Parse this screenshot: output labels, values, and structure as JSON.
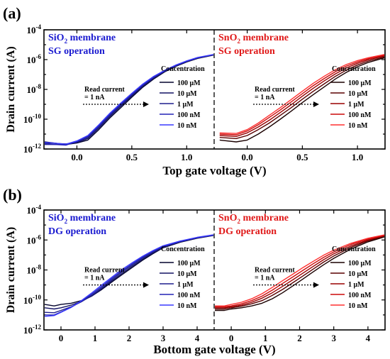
{
  "panels": [
    {
      "label": "(a)",
      "xlabel": "Top gate voltage (V)",
      "ylabel": "Drain current (A)",
      "yticks": [
        {
          "exp": -12,
          "label_base": "10",
          "label_exp": "-12"
        },
        {
          "exp": -10,
          "label_base": "10",
          "label_exp": "-10"
        },
        {
          "exp": -8,
          "label_base": "10",
          "label_exp": "-8"
        },
        {
          "exp": -6,
          "label_base": "10",
          "label_exp": "-6"
        },
        {
          "exp": -4,
          "label_base": "10",
          "label_exp": "-4"
        }
      ]
    },
    {
      "label": "(b)",
      "xlabel": "Bottom gate voltage (V)",
      "ylabel": "Drain current (A)",
      "yticks": [
        {
          "exp": -12,
          "label_base": "10",
          "label_exp": "-12"
        },
        {
          "exp": -10,
          "label_base": "10",
          "label_exp": "-10"
        },
        {
          "exp": -8,
          "label_base": "10",
          "label_exp": "-8"
        },
        {
          "exp": -6,
          "label_base": "10",
          "label_exp": "-6"
        },
        {
          "exp": -4,
          "label_base": "10",
          "label_exp": "-4"
        }
      ]
    }
  ],
  "chart_data": [
    {
      "type": "line",
      "panel": "(a) left",
      "title_main": "SiO",
      "title_sub": "2",
      "title_rest": " membrane",
      "subtitle": "SG operation",
      "title_color": "#1a1ad0",
      "xlabel": "Top gate voltage (V)",
      "ylabel": "Drain current (A)",
      "y_scale": "log",
      "ylim": [
        1e-12,
        0.0001
      ],
      "xlim": [
        -0.3,
        1.25
      ],
      "x_ticks": [
        0.0,
        0.5,
        1.0
      ],
      "x_tick_labels": [
        "0.0",
        "0.5",
        "1.0"
      ],
      "annotation": [
        "Read current",
        "= 1 nA"
      ],
      "annotation_value": 1e-09,
      "legend_title": "Concentration",
      "legend_loc": "center right",
      "series": [
        {
          "name": "100 μM",
          "color": "#05052e",
          "x": [
            -0.3,
            -0.1,
            0.0,
            0.1,
            0.2,
            0.3,
            0.4,
            0.5,
            0.6,
            0.7,
            0.8,
            0.9,
            1.0,
            1.1,
            1.25
          ],
          "y": [
            3e-12,
            2e-12,
            2.5e-12,
            4e-12,
            2e-11,
            1.2e-10,
            6e-10,
            3e-09,
            1.4e-08,
            5e-08,
            1.5e-07,
            3.5e-07,
            7e-07,
            1.2e-06,
            2e-06
          ]
        },
        {
          "name": "10 μM",
          "color": "#141465",
          "x": [
            -0.3,
            -0.1,
            0.0,
            0.1,
            0.2,
            0.3,
            0.4,
            0.5,
            0.6,
            0.7,
            0.8,
            0.9,
            1.0,
            1.1,
            1.25
          ],
          "y": [
            2.5e-12,
            2.2e-12,
            2.7e-12,
            5e-12,
            2.5e-11,
            1.5e-10,
            7.5e-10,
            3.6e-09,
            1.6e-08,
            5.6e-08,
            1.6e-07,
            3.7e-07,
            7.3e-07,
            1.25e-06,
            2.05e-06
          ]
        },
        {
          "name": "1 μM",
          "color": "#1e1e8e",
          "x": [
            -0.3,
            -0.1,
            0.0,
            0.1,
            0.2,
            0.3,
            0.4,
            0.5,
            0.6,
            0.7,
            0.8,
            0.9,
            1.0,
            1.1,
            1.25
          ],
          "y": [
            2e-12,
            2e-12,
            3e-12,
            6e-12,
            3e-11,
            1.8e-10,
            9e-10,
            4.2e-09,
            1.8e-08,
            6.2e-08,
            1.7e-07,
            3.9e-07,
            7.6e-07,
            1.3e-06,
            2.1e-06
          ]
        },
        {
          "name": "100 nM",
          "color": "#2323b5",
          "x": [
            -0.3,
            -0.1,
            0.0,
            0.1,
            0.2,
            0.3,
            0.4,
            0.5,
            0.6,
            0.7,
            0.8,
            0.9,
            1.0,
            1.1,
            1.25
          ],
          "y": [
            2.2e-12,
            1.8e-12,
            3.2e-12,
            7e-12,
            3.6e-11,
            2.1e-10,
            1.05e-09,
            4.8e-09,
            2e-08,
            6.8e-08,
            1.8e-07,
            4.1e-07,
            7.9e-07,
            1.35e-06,
            2.15e-06
          ]
        },
        {
          "name": "10 nM",
          "color": "#3a3aff",
          "x": [
            -0.3,
            -0.1,
            0.0,
            0.1,
            0.2,
            0.3,
            0.4,
            0.5,
            0.6,
            0.7,
            0.8,
            0.9,
            1.0,
            1.1,
            1.25
          ],
          "y": [
            2.8e-12,
            2.1e-12,
            3.5e-12,
            8e-12,
            4.2e-11,
            2.5e-10,
            1.2e-09,
            5.5e-09,
            2.3e-08,
            7.5e-08,
            1.9e-07,
            4.3e-07,
            8.2e-07,
            1.4e-06,
            2.2e-06
          ]
        }
      ]
    },
    {
      "type": "line",
      "panel": "(a) right",
      "title_main": "SnO",
      "title_sub": "2",
      "title_rest": " membrane",
      "subtitle": "SG operation",
      "title_color": "#e01818",
      "xlabel": "Top gate voltage (V)",
      "ylabel": "Drain current (A)",
      "y_scale": "log",
      "ylim": [
        1e-12,
        0.0001
      ],
      "xlim": [
        -0.3,
        1.25
      ],
      "x_ticks": [
        0.0,
        0.5,
        1.0
      ],
      "x_tick_labels": [
        "0.0",
        "0.5",
        "1.0"
      ],
      "annotation": [
        "Read current",
        "= 1 nA"
      ],
      "annotation_value": 1e-09,
      "legend_title": "Concentration",
      "legend_loc": "center right",
      "series": [
        {
          "name": "100 μM",
          "color": "#1a0000",
          "x": [
            -0.25,
            -0.1,
            0.0,
            0.1,
            0.2,
            0.3,
            0.4,
            0.5,
            0.6,
            0.7,
            0.8,
            0.9,
            1.0,
            1.1,
            1.25
          ],
          "y": [
            4e-12,
            3e-12,
            4e-12,
            1e-11,
            3e-11,
            1e-10,
            3.5e-10,
            1.3e-09,
            4.5e-09,
            1.5e-08,
            5e-08,
            1.4e-07,
            3.3e-07,
            6.5e-07,
            1.3e-06
          ]
        },
        {
          "name": "10 μM",
          "color": "#5a0000",
          "x": [
            -0.25,
            -0.1,
            0.0,
            0.1,
            0.2,
            0.3,
            0.4,
            0.5,
            0.6,
            0.7,
            0.8,
            0.9,
            1.0,
            1.1,
            1.25
          ],
          "y": [
            6e-12,
            5e-12,
            8e-12,
            2e-11,
            5.5e-11,
            1.8e-10,
            6e-10,
            2.2e-09,
            7.5e-09,
            2.4e-08,
            7.5e-08,
            2e-07,
            4.3e-07,
            8e-07,
            1.5e-06
          ]
        },
        {
          "name": "1 μM",
          "color": "#9a0000",
          "x": [
            -0.25,
            -0.1,
            0.0,
            0.1,
            0.2,
            0.3,
            0.4,
            0.5,
            0.6,
            0.7,
            0.8,
            0.9,
            1.0,
            1.1,
            1.25
          ],
          "y": [
            8e-12,
            7e-12,
            1.2e-11,
            3e-11,
            8.5e-11,
            2.8e-10,
            9.5e-10,
            3.5e-09,
            1.2e-08,
            3.8e-08,
            1.1e-07,
            2.8e-07,
            5.6e-07,
            9.8e-07,
            1.75e-06
          ]
        },
        {
          "name": "100 nM",
          "color": "#cc0a0a",
          "x": [
            -0.25,
            -0.1,
            0.0,
            0.1,
            0.2,
            0.3,
            0.4,
            0.5,
            0.6,
            0.7,
            0.8,
            0.9,
            1.0,
            1.1,
            1.25
          ],
          "y": [
            1e-11,
            9e-12,
            1.6e-11,
            4.2e-11,
            1.3e-10,
            4.2e-10,
            1.45e-09,
            5.2e-09,
            1.8e-08,
            5.5e-08,
            1.55e-07,
            3.7e-07,
            7e-07,
            1.15e-06,
            1.95e-06
          ]
        },
        {
          "name": "10 nM",
          "color": "#ff3030",
          "x": [
            -0.25,
            -0.1,
            0.0,
            0.1,
            0.2,
            0.3,
            0.4,
            0.5,
            0.6,
            0.7,
            0.8,
            0.9,
            1.0,
            1.1,
            1.25
          ],
          "y": [
            1.2e-11,
            1.1e-11,
            2e-11,
            5.5e-11,
            1.8e-10,
            6e-10,
            2.1e-09,
            7.5e-09,
            2.6e-08,
            7.8e-08,
            2.1e-07,
            4.7e-07,
            8.6e-07,
            1.35e-06,
            2.2e-06
          ]
        }
      ]
    },
    {
      "type": "line",
      "panel": "(b) left",
      "title_main": "SiO",
      "title_sub": "2",
      "title_rest": " membrane",
      "subtitle": "DG operation",
      "title_color": "#1a1ad0",
      "xlabel": "Bottom gate voltage (V)",
      "ylabel": "Drain current (A)",
      "y_scale": "log",
      "ylim": [
        1e-12,
        0.0001
      ],
      "xlim": [
        -0.5,
        4.5
      ],
      "x_ticks": [
        0,
        1,
        2,
        3,
        4
      ],
      "x_tick_labels": [
        "0",
        "1",
        "2",
        "3",
        "4"
      ],
      "annotation": [
        "Read current",
        "= 1 nA"
      ],
      "annotation_value": 1e-09,
      "legend_title": "Concentration",
      "legend_loc": "center right",
      "series": [
        {
          "name": "100 μM",
          "color": "#05052e",
          "x": [
            -0.5,
            -0.2,
            0.0,
            0.3,
            0.6,
            0.9,
            1.2,
            1.5,
            1.8,
            2.1,
            2.4,
            2.7,
            3.0,
            3.5,
            4.0,
            4.5
          ],
          "y": [
            5e-11,
            4e-11,
            5e-11,
            6e-11,
            9e-11,
            1.8e-10,
            5e-10,
            1.6e-09,
            5e-09,
            1.5e-08,
            4.5e-08,
            1.2e-07,
            3e-07,
            7e-07,
            1.3e-06,
            2e-06
          ]
        },
        {
          "name": "10 μM",
          "color": "#141465",
          "x": [
            -0.5,
            -0.2,
            0.0,
            0.3,
            0.6,
            0.9,
            1.2,
            1.5,
            1.8,
            2.1,
            2.4,
            2.7,
            3.0,
            3.5,
            4.0,
            4.5
          ],
          "y": [
            3e-11,
            2.5e-11,
            3e-11,
            4.5e-11,
            8e-11,
            1.8e-10,
            5.5e-10,
            1.9e-09,
            6e-09,
            1.8e-08,
            5.3e-08,
            1.35e-07,
            3.2e-07,
            7.3e-07,
            1.35e-06,
            2.05e-06
          ]
        },
        {
          "name": "1 μM",
          "color": "#1e1e8e",
          "x": [
            -0.5,
            -0.2,
            0.0,
            0.3,
            0.6,
            0.9,
            1.2,
            1.5,
            1.8,
            2.1,
            2.4,
            2.7,
            3.0,
            3.5,
            4.0,
            4.5
          ],
          "y": [
            1.5e-11,
            1.4e-11,
            2e-11,
            3.5e-11,
            7.5e-11,
            2e-10,
            6.5e-10,
            2.3e-09,
            7.5e-09,
            2.2e-08,
            6.3e-08,
            1.55e-07,
            3.5e-07,
            7.7e-07,
            1.4e-06,
            2.1e-06
          ]
        },
        {
          "name": "100 nM",
          "color": "#2323b5",
          "x": [
            -0.5,
            -0.2,
            0.0,
            0.3,
            0.6,
            0.9,
            1.2,
            1.5,
            1.8,
            2.1,
            2.4,
            2.7,
            3.0,
            3.5,
            4.0,
            4.5
          ],
          "y": [
            1e-11,
            1e-11,
            1.6e-11,
            3.2e-11,
            8e-11,
            2.4e-10,
            8e-10,
            2.8e-09,
            9e-09,
            2.6e-08,
            7.2e-08,
            1.75e-07,
            3.8e-07,
            8.1e-07,
            1.45e-06,
            2.15e-06
          ]
        },
        {
          "name": "10 nM",
          "color": "#3a3aff",
          "x": [
            -0.5,
            -0.2,
            0.0,
            0.3,
            0.6,
            0.9,
            1.2,
            1.5,
            1.8,
            2.1,
            2.4,
            2.7,
            3.0,
            3.5,
            4.0,
            4.5
          ],
          "y": [
            8e-12,
            9e-12,
            1.5e-11,
            3.2e-11,
            9e-11,
            2.9e-10,
            1e-09,
            3.4e-09,
            1.1e-08,
            3.1e-08,
            8.3e-08,
            1.95e-07,
            4.1e-07,
            8.5e-07,
            1.5e-06,
            2.2e-06
          ]
        }
      ]
    },
    {
      "type": "line",
      "panel": "(b) right",
      "title_main": "SnO",
      "title_sub": "2",
      "title_rest": " membrane",
      "subtitle": "DG operation",
      "title_color": "#e01818",
      "xlabel": "Bottom gate voltage (V)",
      "ylabel": "Drain current (A)",
      "y_scale": "log",
      "ylim": [
        1e-12,
        0.0001
      ],
      "xlim": [
        -0.5,
        4.5
      ],
      "x_ticks": [
        0,
        1,
        2,
        3,
        4
      ],
      "x_tick_labels": [
        "0",
        "1",
        "2",
        "3",
        "4"
      ],
      "annotation": [
        "Read current",
        "= 1 nA"
      ],
      "annotation_value": 1e-09,
      "legend_title": "Concentration",
      "legend_loc": "center right",
      "series": [
        {
          "name": "100 μM",
          "color": "#1a0000",
          "x": [
            -0.5,
            -0.2,
            0.0,
            0.3,
            0.6,
            0.9,
            1.2,
            1.5,
            1.8,
            2.1,
            2.4,
            2.7,
            3.0,
            3.5,
            4.0,
            4.5
          ],
          "y": [
            2e-11,
            2e-11,
            2.5e-11,
            3e-11,
            4e-11,
            6e-11,
            1.2e-10,
            3e-10,
            8.5e-10,
            2.5e-09,
            7.5e-09,
            2.2e-08,
            6e-08,
            2.5e-07,
            7.5e-07,
            1.6e-06
          ]
        },
        {
          "name": "10 μM",
          "color": "#5a0000",
          "x": [
            -0.5,
            -0.2,
            0.0,
            0.3,
            0.6,
            0.9,
            1.2,
            1.5,
            1.8,
            2.1,
            2.4,
            2.7,
            3.0,
            3.5,
            4.0,
            4.5
          ],
          "y": [
            2.5e-11,
            2.5e-11,
            3e-11,
            3.8e-11,
            5.5e-11,
            9e-11,
            2e-10,
            5e-10,
            1.4e-09,
            4e-09,
            1.15e-08,
            3.3e-08,
            8.6e-08,
            3.2e-07,
            8.8e-07,
            1.75e-06
          ]
        },
        {
          "name": "1 μM",
          "color": "#9a0000",
          "x": [
            -0.5,
            -0.2,
            0.0,
            0.3,
            0.6,
            0.9,
            1.2,
            1.5,
            1.8,
            2.1,
            2.4,
            2.7,
            3.0,
            3.5,
            4.0,
            4.5
          ],
          "y": [
            3e-11,
            3e-11,
            3.5e-11,
            4.5e-11,
            7e-11,
            1.3e-10,
            3e-10,
            8e-10,
            2.2e-09,
            6.2e-09,
            1.75e-08,
            4.8e-08,
            1.2e-07,
            4e-07,
            1e-06,
            1.9e-06
          ]
        },
        {
          "name": "100 nM",
          "color": "#cc0a0a",
          "x": [
            -0.5,
            -0.2,
            0.0,
            0.3,
            0.6,
            0.9,
            1.2,
            1.5,
            1.8,
            2.1,
            2.4,
            2.7,
            3.0,
            3.5,
            4.0,
            4.5
          ],
          "y": [
            3.5e-11,
            3.5e-11,
            4e-11,
            5.5e-11,
            9e-11,
            1.8e-10,
            4.5e-10,
            1.25e-09,
            3.4e-09,
            9.5e-09,
            2.6e-08,
            6.8e-08,
            1.6e-07,
            5e-07,
            1.15e-06,
            2.05e-06
          ]
        },
        {
          "name": "10 nM",
          "color": "#ff3030",
          "x": [
            -0.5,
            -0.2,
            0.0,
            0.3,
            0.6,
            0.9,
            1.2,
            1.5,
            1.8,
            2.1,
            2.4,
            2.7,
            3.0,
            3.5,
            4.0,
            4.5
          ],
          "y": [
            4e-11,
            4e-11,
            5e-11,
            7e-11,
            1.2e-10,
            2.6e-10,
            6.8e-10,
            1.9e-09,
            5.2e-09,
            1.45e-08,
            3.8e-08,
            9.5e-08,
            2.1e-07,
            6e-07,
            1.3e-06,
            2.2e-06
          ]
        }
      ]
    }
  ]
}
